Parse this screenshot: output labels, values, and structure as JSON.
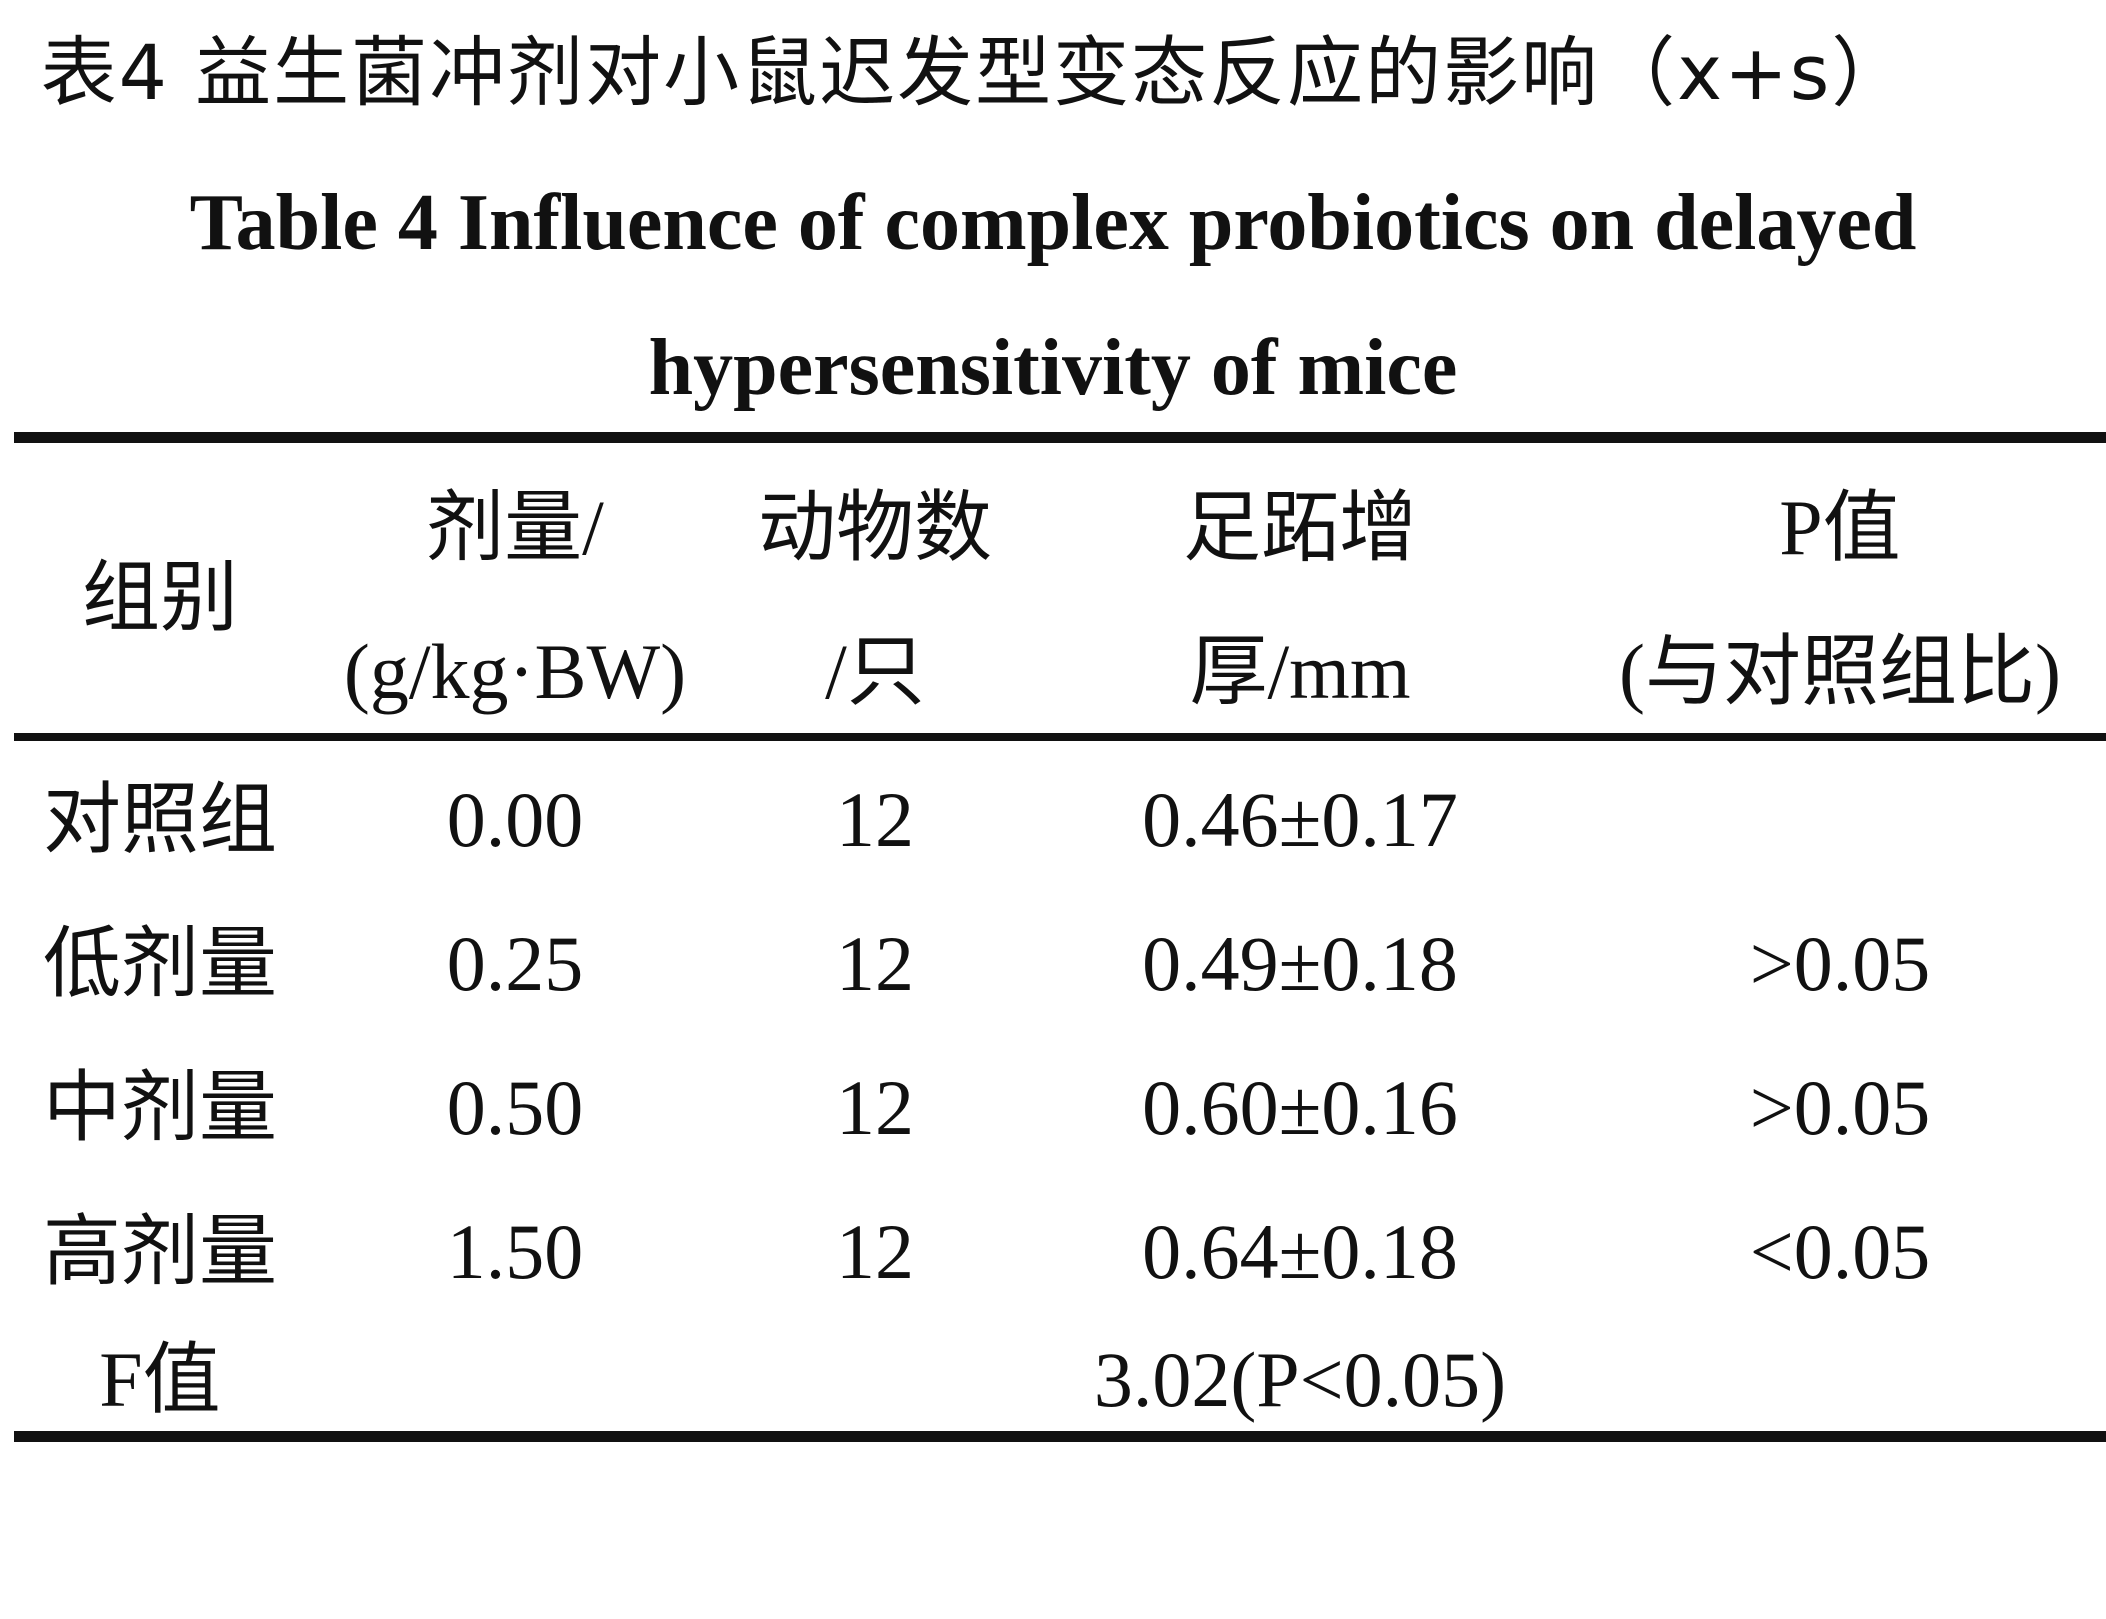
{
  "title_cn": "表4  益生菌冲剂对小鼠迟发型变态反应的影响（x+s）",
  "title_en_line1": "Table 4 Influence of complex probiotics on delayed",
  "title_en_line2": "hypersensitivity of mice",
  "headers": {
    "group": "组别",
    "dose_line1": "剂量/",
    "dose_line2": "(g/kg·BW)",
    "animals_line1": "动物数",
    "animals_line2": "/只",
    "thickness_line1": "足跖增",
    "thickness_line2": "厚/mm",
    "p_line1": "P值",
    "p_line2": "(与对照组比)"
  },
  "rows": [
    {
      "group": "对照组",
      "dose": "0.00",
      "animals": "12",
      "thickness": "0.46±0.17",
      "p": ""
    },
    {
      "group": "低剂量",
      "dose": "0.25",
      "animals": "12",
      "thickness": "0.49±0.18",
      "p": ">0.05"
    },
    {
      "group": "中剂量",
      "dose": "0.50",
      "animals": "12",
      "thickness": "0.60±0.16",
      "p": ">0.05"
    },
    {
      "group": "高剂量",
      "dose": "1.50",
      "animals": "12",
      "thickness": "0.64±0.18",
      "p": "<0.05"
    }
  ],
  "f_row": {
    "label": "F值",
    "value": "3.02(P<0.05)"
  }
}
